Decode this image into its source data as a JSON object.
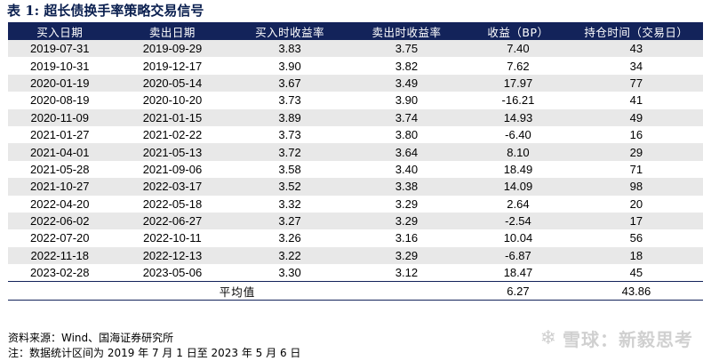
{
  "title": "表 1:  超长债换手率策略交易信号",
  "table": {
    "headers": [
      "买入日期",
      "卖出日期",
      "买入时收益率",
      "卖出时收益率",
      "收益（BP）",
      "持仓时间（交易日）"
    ],
    "rows": [
      [
        "2019-07-31",
        "2019-09-29",
        "3.83",
        "3.75",
        "7.40",
        "43"
      ],
      [
        "2019-10-31",
        "2019-12-17",
        "3.90",
        "3.82",
        "7.62",
        "34"
      ],
      [
        "2020-01-19",
        "2020-05-14",
        "3.67",
        "3.49",
        "17.97",
        "77"
      ],
      [
        "2020-08-19",
        "2020-10-20",
        "3.73",
        "3.90",
        "-16.21",
        "41"
      ],
      [
        "2020-11-09",
        "2021-01-15",
        "3.89",
        "3.74",
        "14.93",
        "49"
      ],
      [
        "2021-01-27",
        "2021-02-22",
        "3.73",
        "3.80",
        "-6.40",
        "16"
      ],
      [
        "2021-04-01",
        "2021-05-13",
        "3.72",
        "3.64",
        "8.10",
        "29"
      ],
      [
        "2021-05-28",
        "2021-09-06",
        "3.58",
        "3.40",
        "18.49",
        "71"
      ],
      [
        "2021-10-27",
        "2022-03-17",
        "3.52",
        "3.38",
        "14.09",
        "98"
      ],
      [
        "2022-04-20",
        "2022-05-18",
        "3.32",
        "3.29",
        "2.64",
        "20"
      ],
      [
        "2022-06-02",
        "2022-06-27",
        "3.27",
        "3.29",
        "-2.54",
        "17"
      ],
      [
        "2022-07-20",
        "2022-10-11",
        "3.26",
        "3.16",
        "10.04",
        "56"
      ],
      [
        "2022-11-18",
        "2022-12-13",
        "3.22",
        "3.29",
        "-6.87",
        "18"
      ],
      [
        "2023-02-28",
        "2023-05-06",
        "3.30",
        "3.12",
        "18.47",
        "45"
      ]
    ],
    "average": {
      "label": "平均值",
      "return_bp": "6.27",
      "holding_days": "43.86"
    }
  },
  "notes": {
    "source": "资料来源：Wind、国海证券研究所",
    "period": "注：数据统计区间为 2019 年 7 月 1 日至 2023 年 5 月 6 日"
  },
  "watermark": {
    "text": "雪球：新毅思考",
    "icon": "snowball-icon"
  }
}
